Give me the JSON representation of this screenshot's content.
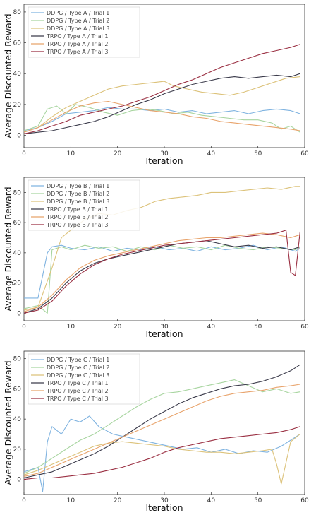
{
  "chart_data": [
    {
      "type": "line",
      "xlabel": "Iteration",
      "ylabel": "Average Discounted Reward",
      "xlim": [
        0,
        60
      ],
      "ylim": [
        -8,
        85
      ],
      "xticks": [
        0,
        10,
        20,
        30,
        40,
        50,
        60
      ],
      "yticks": [
        0,
        20,
        40,
        60,
        80
      ],
      "grid": false,
      "legend_position": "top-left",
      "series": [
        {
          "name": "DDPG  / Type A / Trial 1",
          "color": "#7fb3e0",
          "x": [
            0,
            3,
            6,
            9,
            12,
            15,
            18,
            21,
            24,
            27,
            30,
            33,
            36,
            39,
            42,
            45,
            48,
            51,
            54,
            57,
            59
          ],
          "y": [
            3,
            5,
            9,
            14,
            15,
            16,
            18,
            17,
            17,
            16,
            17,
            15,
            16,
            14,
            15,
            16,
            14,
            16,
            17,
            16,
            14
          ]
        },
        {
          "name": "DDPG  / Type A / Trial 2",
          "color": "#a8d5a0",
          "x": [
            0,
            3,
            5,
            7,
            9,
            11,
            14,
            17,
            20,
            23,
            26,
            29,
            32,
            35,
            38,
            41,
            44,
            47,
            50,
            53,
            55,
            57,
            59
          ],
          "y": [
            3,
            6,
            17,
            19,
            14,
            20,
            18,
            15,
            13,
            16,
            17,
            16,
            14,
            15,
            13,
            12,
            11,
            10,
            10,
            8,
            4,
            6,
            2
          ]
        },
        {
          "name": "DDPG  / Type A / Trial 3",
          "color": "#dcc27a",
          "x": [
            0,
            3,
            6,
            9,
            12,
            15,
            18,
            21,
            24,
            27,
            30,
            32,
            35,
            38,
            41,
            44,
            47,
            50,
            53,
            56,
            59
          ],
          "y": [
            2,
            5,
            12,
            18,
            22,
            26,
            30,
            32,
            33,
            34,
            35,
            32,
            30,
            28,
            27,
            26,
            28,
            31,
            34,
            37,
            38
          ]
        },
        {
          "name": "TRPO  / Type A / Trial 1",
          "color": "#3a3a4a",
          "x": [
            0,
            3,
            6,
            9,
            12,
            15,
            18,
            21,
            24,
            27,
            30,
            33,
            36,
            39,
            42,
            45,
            48,
            51,
            54,
            57,
            59
          ],
          "y": [
            1,
            2,
            3,
            5,
            7,
            9,
            12,
            16,
            20,
            23,
            27,
            30,
            33,
            35,
            37,
            38,
            37,
            38,
            39,
            38,
            40
          ]
        },
        {
          "name": "TRPO  / Type A / Trial 2",
          "color": "#e8a36b",
          "x": [
            0,
            3,
            6,
            9,
            12,
            15,
            18,
            21,
            24,
            27,
            30,
            33,
            36,
            39,
            42,
            45,
            48,
            51,
            54,
            57,
            59
          ],
          "y": [
            2,
            5,
            10,
            15,
            19,
            21,
            22,
            20,
            18,
            16,
            15,
            14,
            12,
            11,
            9,
            8,
            7,
            6,
            5,
            4,
            3
          ]
        },
        {
          "name": "TRPO  / Type A / Trial 3",
          "color": "#9a2f42",
          "x": [
            0,
            3,
            6,
            9,
            12,
            15,
            18,
            21,
            24,
            27,
            30,
            33,
            36,
            39,
            42,
            45,
            48,
            51,
            54,
            57,
            59
          ],
          "y": [
            1,
            3,
            6,
            9,
            13,
            15,
            17,
            19,
            22,
            25,
            29,
            33,
            36,
            40,
            44,
            47,
            50,
            53,
            55,
            57,
            59
          ]
        }
      ]
    },
    {
      "type": "line",
      "xlabel": "Iteration",
      "ylabel": "Average Discounted Reward",
      "xlim": [
        0,
        60
      ],
      "ylim": [
        -5,
        90
      ],
      "xticks": [
        0,
        10,
        20,
        30,
        40,
        50,
        60
      ],
      "yticks": [
        0,
        20,
        40,
        60,
        80
      ],
      "grid": false,
      "legend_position": "top-left",
      "series": [
        {
          "name": "DDPG  / Type B / Trial 1",
          "color": "#7fb3e0",
          "x": [
            0,
            3,
            5,
            6,
            8,
            10,
            13,
            16,
            19,
            22,
            25,
            28,
            31,
            34,
            37,
            40,
            43,
            46,
            49,
            52,
            55,
            58,
            59
          ],
          "y": [
            10,
            10,
            40,
            44,
            45,
            43,
            42,
            44,
            41,
            43,
            42,
            44,
            42,
            43,
            41,
            44,
            42,
            43,
            45,
            42,
            44,
            41,
            43
          ]
        },
        {
          "name": "DDPG  / Type B / Trial 2",
          "color": "#a8d5a0",
          "x": [
            0,
            3,
            5,
            6,
            8,
            10,
            13,
            16,
            19,
            22,
            25,
            28,
            31,
            34,
            37,
            40,
            43,
            46,
            49,
            52,
            55,
            58,
            59
          ],
          "y": [
            3,
            5,
            0,
            42,
            44,
            42,
            45,
            43,
            44,
            41,
            44,
            42,
            45,
            43,
            44,
            42,
            45,
            43,
            42,
            44,
            43,
            42,
            44
          ]
        },
        {
          "name": "DDPG  / Type B / Trial 3",
          "color": "#dcc27a",
          "x": [
            0,
            3,
            6,
            8,
            10,
            13,
            16,
            19,
            22,
            25,
            28,
            31,
            34,
            37,
            40,
            43,
            46,
            49,
            52,
            55,
            58,
            59
          ],
          "y": [
            2,
            4,
            30,
            50,
            55,
            62,
            66,
            65,
            68,
            70,
            74,
            76,
            77,
            78,
            80,
            80,
            81,
            82,
            83,
            82,
            84,
            84
          ]
        },
        {
          "name": "TRPO  / Type B / Trial 1",
          "color": "#3a3a4a",
          "x": [
            0,
            3,
            6,
            9,
            12,
            15,
            18,
            21,
            24,
            27,
            30,
            33,
            36,
            39,
            42,
            45,
            48,
            51,
            54,
            57,
            59
          ],
          "y": [
            0,
            3,
            10,
            20,
            28,
            33,
            36,
            38,
            40,
            42,
            44,
            46,
            47,
            48,
            46,
            44,
            45,
            43,
            44,
            42,
            44
          ]
        },
        {
          "name": "TRPO  / Type B / Trial 2",
          "color": "#e8a36b",
          "x": [
            0,
            3,
            6,
            9,
            12,
            15,
            18,
            21,
            24,
            27,
            30,
            33,
            36,
            39,
            42,
            45,
            48,
            51,
            54,
            57,
            59
          ],
          "y": [
            1,
            4,
            12,
            22,
            30,
            35,
            38,
            40,
            42,
            44,
            46,
            48,
            49,
            50,
            50,
            51,
            52,
            53,
            52,
            50,
            52
          ]
        },
        {
          "name": "TRPO  / Type B / Trial 3",
          "color": "#9a2f42",
          "x": [
            0,
            3,
            6,
            9,
            12,
            15,
            18,
            21,
            24,
            27,
            30,
            33,
            36,
            39,
            42,
            45,
            48,
            51,
            54,
            56,
            57,
            58,
            59
          ],
          "y": [
            0,
            2,
            8,
            18,
            26,
            32,
            36,
            39,
            41,
            43,
            45,
            46,
            47,
            48,
            49,
            50,
            51,
            52,
            53,
            55,
            27,
            25,
            54
          ]
        }
      ]
    },
    {
      "type": "line",
      "xlabel": "Iteration",
      "ylabel": "Average Discounted Reward",
      "xlim": [
        0,
        60
      ],
      "ylim": [
        -10,
        85
      ],
      "xticks": [
        0,
        10,
        20,
        30,
        40,
        50,
        60
      ],
      "yticks": [
        0,
        20,
        40,
        60,
        80
      ],
      "grid": false,
      "legend_position": "top-left",
      "series": [
        {
          "name": "DDPG  / Type C / Trial 1",
          "color": "#7fb3e0",
          "x": [
            0,
            3,
            4,
            5,
            6,
            8,
            10,
            12,
            14,
            16,
            19,
            22,
            25,
            28,
            31,
            34,
            37,
            40,
            43,
            46,
            49,
            52,
            55,
            58,
            59
          ],
          "y": [
            5,
            8,
            -8,
            25,
            35,
            30,
            40,
            38,
            42,
            35,
            30,
            28,
            26,
            24,
            22,
            20,
            21,
            18,
            20,
            17,
            19,
            18,
            22,
            28,
            30
          ]
        },
        {
          "name": "DDPG  / Type C / Trial 2",
          "color": "#a8d5a0",
          "x": [
            0,
            3,
            5,
            7,
            9,
            12,
            15,
            18,
            21,
            24,
            27,
            30,
            33,
            36,
            39,
            42,
            45,
            48,
            51,
            54,
            57,
            59
          ],
          "y": [
            4,
            8,
            12,
            16,
            20,
            26,
            30,
            36,
            42,
            48,
            53,
            57,
            58,
            60,
            62,
            64,
            66,
            62,
            58,
            60,
            57,
            58
          ]
        },
        {
          "name": "DDPG  / Type C / Trial 3",
          "color": "#dcc27a",
          "x": [
            0,
            3,
            6,
            9,
            12,
            15,
            18,
            21,
            24,
            27,
            30,
            33,
            36,
            39,
            42,
            45,
            48,
            51,
            53,
            54,
            55,
            57,
            59
          ],
          "y": [
            3,
            6,
            10,
            14,
            18,
            22,
            24,
            25,
            24,
            23,
            22,
            20,
            19,
            18,
            18,
            17,
            18,
            19,
            20,
            10,
            -3,
            25,
            30
          ]
        },
        {
          "name": "TRPO  / Type C / Trial 1",
          "color": "#3a3a4a",
          "x": [
            0,
            3,
            6,
            9,
            12,
            15,
            18,
            21,
            24,
            27,
            30,
            33,
            36,
            39,
            42,
            45,
            48,
            51,
            54,
            57,
            59
          ],
          "y": [
            1,
            3,
            5,
            9,
            13,
            17,
            22,
            28,
            34,
            40,
            45,
            50,
            54,
            57,
            60,
            62,
            63,
            65,
            68,
            72,
            76
          ]
        },
        {
          "name": "TRPO  / Type C / Trial 2",
          "color": "#e8a36b",
          "x": [
            0,
            3,
            6,
            9,
            12,
            15,
            18,
            21,
            24,
            27,
            30,
            33,
            36,
            39,
            42,
            45,
            48,
            51,
            54,
            57,
            59
          ],
          "y": [
            2,
            4,
            8,
            12,
            16,
            20,
            24,
            28,
            32,
            36,
            40,
            44,
            48,
            52,
            55,
            57,
            58,
            59,
            61,
            62,
            63
          ]
        },
        {
          "name": "TRPO  / Type C / Trial 3",
          "color": "#9a2f42",
          "x": [
            0,
            3,
            6,
            9,
            12,
            15,
            18,
            21,
            24,
            27,
            30,
            33,
            36,
            39,
            42,
            45,
            48,
            51,
            54,
            57,
            59
          ],
          "y": [
            0,
            1,
            1,
            2,
            3,
            4,
            6,
            8,
            11,
            14,
            18,
            21,
            23,
            25,
            27,
            28,
            29,
            30,
            31,
            33,
            35
          ]
        }
      ]
    }
  ]
}
